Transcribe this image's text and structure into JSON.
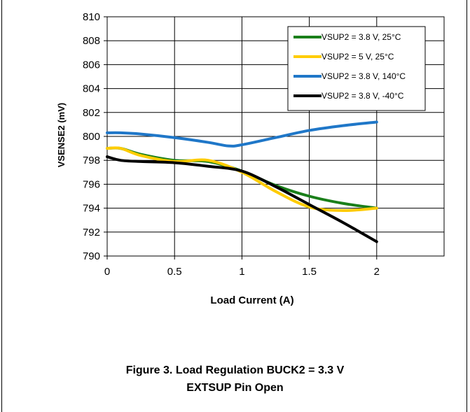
{
  "chart_data": {
    "type": "line",
    "title": "",
    "xlabel": "Load Current (A)",
    "ylabel": "VSENSE2 (mV)",
    "xlim": [
      0,
      2.5
    ],
    "ylim": [
      790,
      810
    ],
    "xticks": [
      0,
      0.5,
      1,
      1.5,
      2
    ],
    "xtick_labels": [
      "0",
      "0.5",
      "1",
      "1.5",
      "2"
    ],
    "yticks": [
      790,
      792,
      794,
      796,
      798,
      800,
      802,
      804,
      806,
      808,
      810
    ],
    "ytick_labels": [
      "790",
      "792",
      "794",
      "796",
      "798",
      "800",
      "802",
      "804",
      "806",
      "808",
      "810"
    ],
    "grid": true,
    "legend_position": "top-right",
    "series": [
      {
        "name": "VSUP2 = 3.8 V, 25°C",
        "color": "#1a7f1a",
        "x": [
          0,
          0.1,
          0.25,
          0.5,
          0.75,
          1.0,
          1.25,
          1.5,
          1.75,
          2.0
        ],
        "y": [
          799.0,
          799.0,
          798.5,
          798.0,
          797.9,
          797.1,
          795.9,
          795.0,
          794.4,
          794.0
        ]
      },
      {
        "name": "VSUP2 = 5 V, 25°C",
        "color": "#ffcc00",
        "x": [
          0,
          0.1,
          0.25,
          0.5,
          0.75,
          1.0,
          1.25,
          1.5,
          1.75,
          2.0
        ],
        "y": [
          799.0,
          799.0,
          798.4,
          797.9,
          798.0,
          797.0,
          795.4,
          794.1,
          793.8,
          794.0
        ]
      },
      {
        "name": "VSUP2 = 3.8 V, 140°C",
        "color": "#1f77c8",
        "x": [
          0,
          0.1,
          0.25,
          0.5,
          0.75,
          0.9,
          1.0,
          1.25,
          1.5,
          1.75,
          2.0
        ],
        "y": [
          800.3,
          800.3,
          800.2,
          799.9,
          799.5,
          799.2,
          799.3,
          799.9,
          800.5,
          800.9,
          801.2
        ]
      },
      {
        "name": "VSUP2 = 3.8 V, -40°C",
        "color": "#000000",
        "x": [
          0,
          0.1,
          0.25,
          0.5,
          0.75,
          1.0,
          1.25,
          1.5,
          1.75,
          2.0
        ],
        "y": [
          798.3,
          798.0,
          797.9,
          797.8,
          797.5,
          797.1,
          795.8,
          794.3,
          792.8,
          791.2
        ]
      }
    ]
  },
  "caption": {
    "line1": "Figure 3. Load Regulation BUCK2 = 3.3 V",
    "line2": "EXTSUP Pin Open"
  }
}
